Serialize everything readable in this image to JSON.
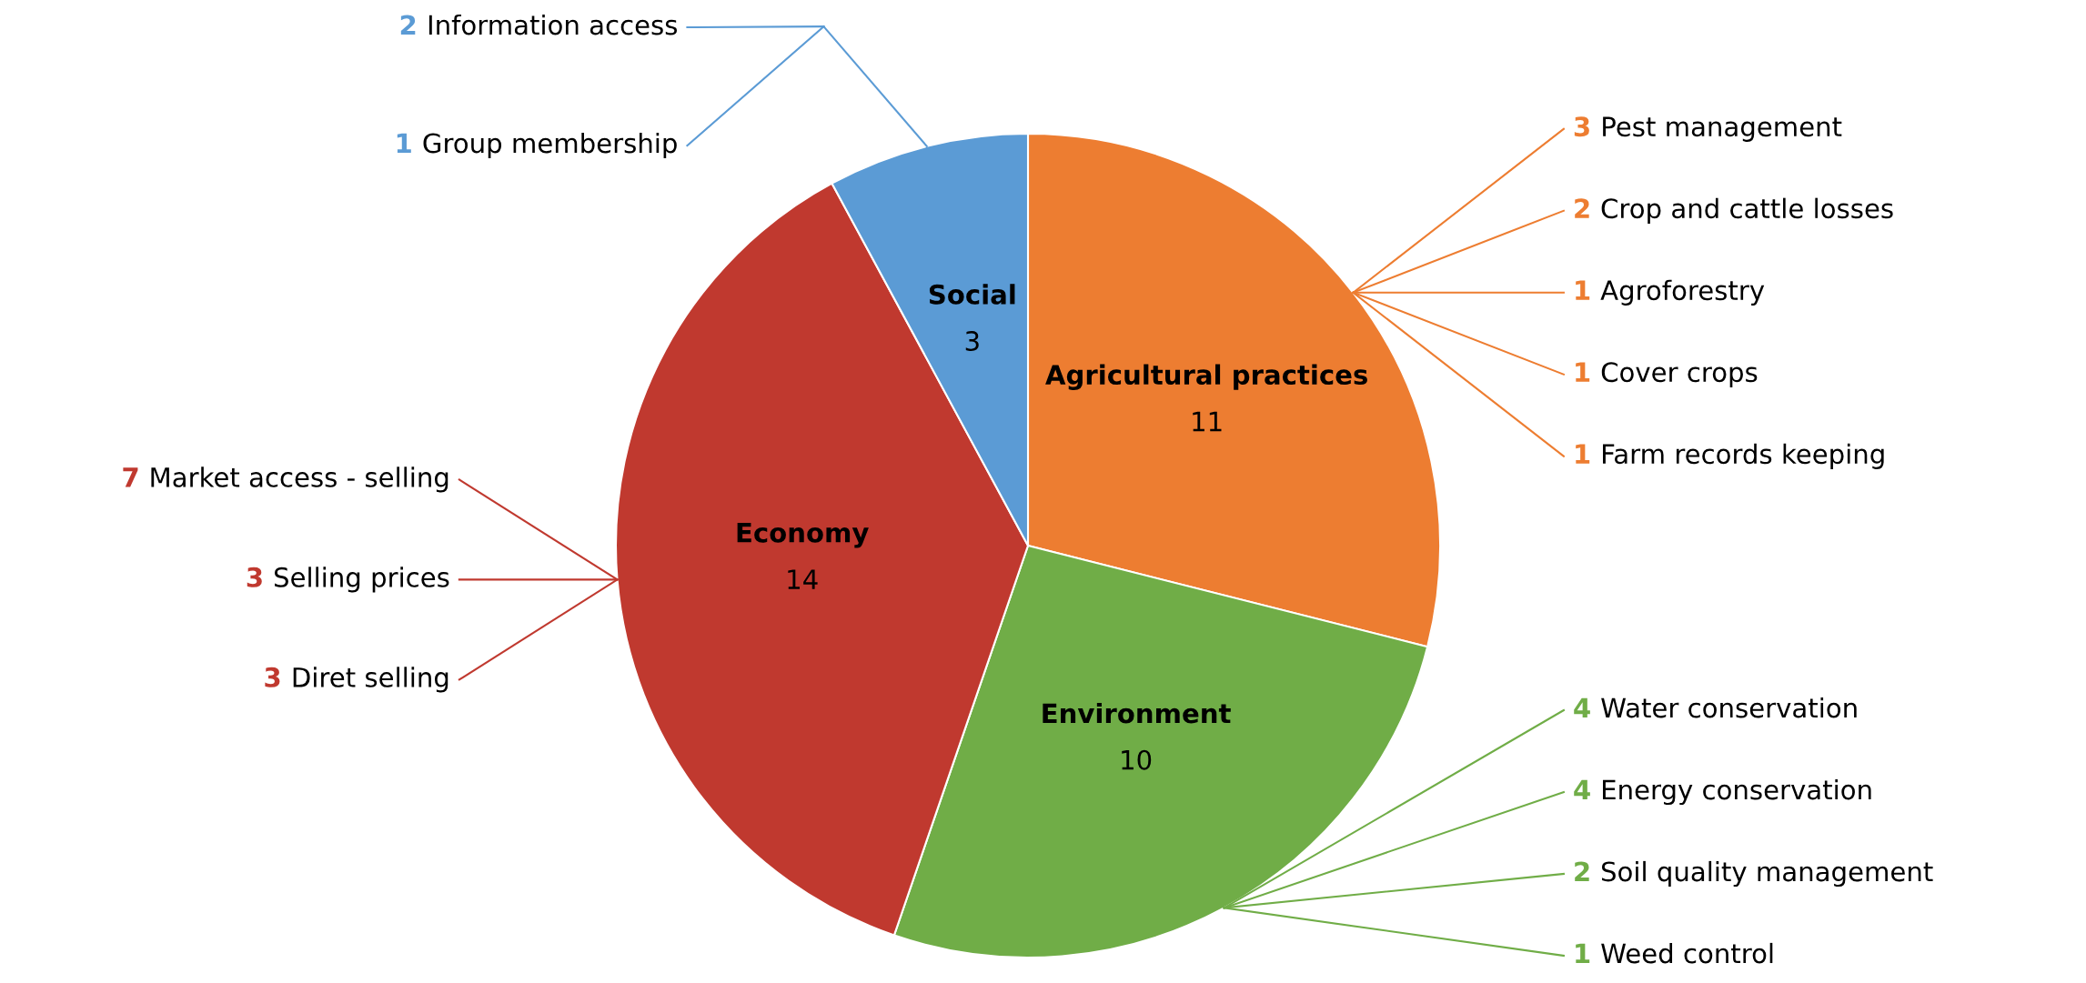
{
  "chart_data": {
    "type": "pie",
    "categories": [
      "Agricultural practices",
      "Environment",
      "Economy",
      "Social"
    ],
    "values": [
      11,
      10,
      14,
      3
    ],
    "colors": [
      "#ed7d31",
      "#70ad47",
      "#c0392f",
      "#5b9bd5"
    ],
    "data_labels": true,
    "legend": false,
    "annotations": [
      {
        "text": "3 Pest management",
        "x": "Agricultural practices"
      },
      {
        "text": "2 Crop and cattle losses",
        "x": "Agricultural practices"
      },
      {
        "text": "1 Agroforestry",
        "x": "Agricultural practices"
      },
      {
        "text": "1 Cover crops",
        "x": "Agricultural practices"
      },
      {
        "text": "1 Farm records keeping",
        "x": "Agricultural practices"
      },
      {
        "text": "4 Water conservation",
        "x": "Environment"
      },
      {
        "text": "4 Energy conservation",
        "x": "Environment"
      },
      {
        "text": "2 Soil quality management",
        "x": "Environment"
      },
      {
        "text": "1 Weed control",
        "x": "Environment"
      },
      {
        "text": "7 Market access - selling",
        "x": "Economy"
      },
      {
        "text": "3 Selling prices",
        "x": "Economy"
      },
      {
        "text": "3 Diret selling",
        "x": "Economy"
      },
      {
        "text": "2 Information access",
        "x": "Social"
      },
      {
        "text": "1 Group membership",
        "x": "Social"
      }
    ]
  }
}
